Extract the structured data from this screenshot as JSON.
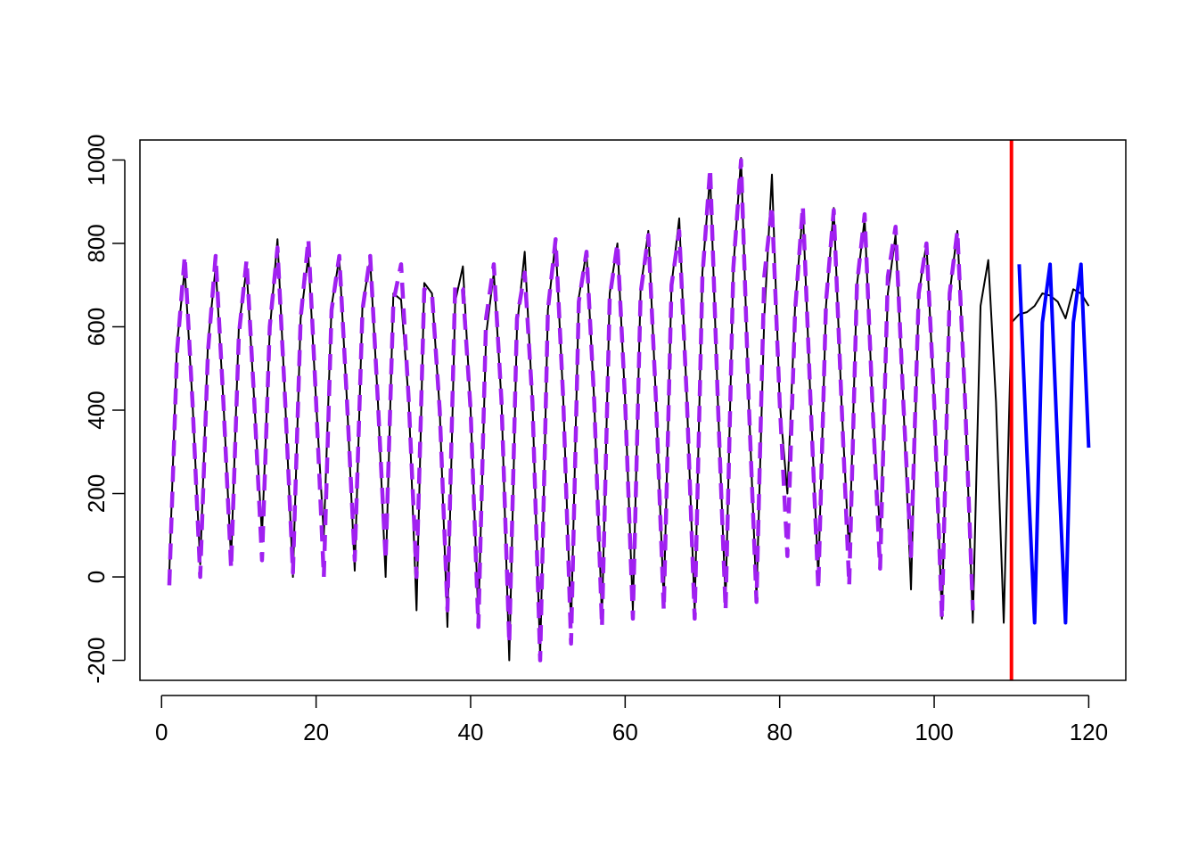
{
  "chart_data": {
    "type": "line",
    "title": "",
    "xlabel": "",
    "ylabel": "",
    "xlim": [
      -2.8,
      124.8
    ],
    "ylim": [
      -248,
      1048
    ],
    "x_ticks": [
      0,
      20,
      40,
      60,
      80,
      100,
      120
    ],
    "y_ticks": [
      -200,
      0,
      200,
      400,
      600,
      800,
      1000
    ],
    "grid": false,
    "legend": "none",
    "vline": {
      "x": 110,
      "color": "#ff0000"
    },
    "series": [
      {
        "style": "solid-thin",
        "color": "#000000",
        "x_start": 1,
        "values": [
          10,
          560,
          740,
          420,
          30,
          560,
          745,
          420,
          40,
          600,
          740,
          420,
          100,
          590,
          810,
          420,
          0,
          620,
          770,
          420,
          100,
          650,
          765,
          420,
          15,
          650,
          760,
          420,
          0,
          680,
          665,
          420,
          -80,
          705,
          680,
          400,
          -120,
          660,
          745,
          400,
          -100,
          580,
          730,
          420,
          -200,
          600,
          780,
          420,
          -190,
          640,
          805,
          420,
          -120,
          670,
          780,
          420,
          -100,
          680,
          800,
          420,
          -80,
          690,
          830,
          420,
          -60,
          700,
          860,
          420,
          -80,
          730,
          965,
          420,
          -60,
          740,
          1005,
          420,
          -50,
          620,
          965,
          420,
          200,
          650,
          880,
          420,
          0,
          650,
          885,
          420,
          50,
          700,
          860,
          420,
          100,
          680,
          820,
          420,
          -30,
          680,
          800,
          420,
          -100,
          680,
          830,
          420,
          -110,
          650,
          760,
          420,
          -110,
          610,
          630,
          635,
          650,
          680,
          675,
          660,
          620,
          690,
          680,
          650
        ]
      },
      {
        "style": "dashed-thick",
        "color": "#a020f0",
        "x_start": 1,
        "values": [
          -20,
          540,
          770,
          420,
          0,
          540,
          770,
          420,
          20,
          580,
          760,
          420,
          40,
          600,
          790,
          420,
          10,
          620,
          810,
          420,
          0,
          640,
          770,
          420,
          40,
          640,
          770,
          420,
          40,
          660,
          750,
          420,
          0,
          690,
          680,
          400,
          -80,
          700,
          690,
          400,
          -120,
          620,
          750,
          420,
          -160,
          620,
          730,
          420,
          -200,
          640,
          810,
          420,
          -160,
          660,
          780,
          420,
          -120,
          670,
          800,
          420,
          -100,
          680,
          820,
          420,
          -80,
          700,
          830,
          420,
          -100,
          720,
          980,
          420,
          -80,
          740,
          1000,
          420,
          -60,
          720,
          890,
          420,
          50,
          640,
          890,
          420,
          -30,
          660,
          880,
          420,
          -20,
          700,
          870,
          420,
          20,
          720,
          840,
          420,
          50,
          680,
          800,
          420,
          -100,
          680,
          830,
          420,
          -80
        ]
      },
      {
        "style": "solid-thick",
        "color": "#0000ff",
        "x_start": 111,
        "values": [
          750,
          300,
          -110,
          610,
          750,
          300,
          -110,
          610,
          750,
          310
        ]
      }
    ]
  }
}
